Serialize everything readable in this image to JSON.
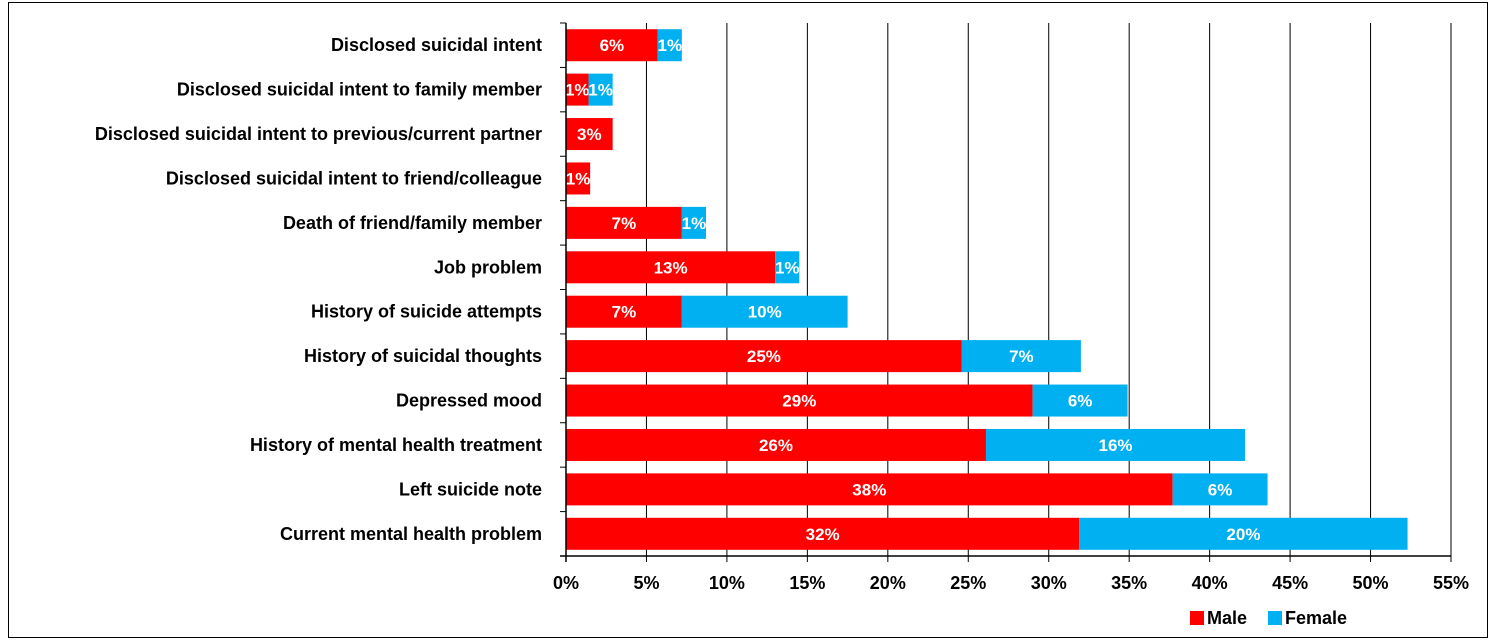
{
  "chart_data": {
    "type": "bar",
    "orientation": "horizontal",
    "stacked": true,
    "categories": [
      "Disclosed suicidal intent",
      "Disclosed suicidal intent to family member",
      "Disclosed suicidal intent to previous/current partner",
      "Disclosed suicidal intent to friend/colleague",
      "Death of friend/family member",
      "Job problem",
      "History of suicide attempts",
      "History of suicidal thoughts",
      "Depressed mood",
      "History of mental health treatment",
      "Left suicide note",
      "Current mental health problem"
    ],
    "series": [
      {
        "name": "Male",
        "color": "#ff0000",
        "values": [
          5.7,
          1.4,
          2.9,
          1.5,
          7.2,
          13.0,
          7.2,
          24.6,
          29.0,
          26.1,
          37.7,
          31.9
        ],
        "labels": [
          "6%",
          "1%",
          "3%",
          "1%",
          "7%",
          "13%",
          "7%",
          "25%",
          "29%",
          "26%",
          "38%",
          "32%"
        ]
      },
      {
        "name": "Female",
        "color": "#00b0f0",
        "values": [
          1.5,
          1.5,
          0,
          0,
          1.5,
          1.5,
          10.3,
          7.4,
          5.9,
          16.1,
          5.9,
          20.4
        ],
        "labels": [
          "1%",
          "1%",
          "",
          "",
          "1%",
          "1%",
          "10%",
          "7%",
          "6%",
          "16%",
          "6%",
          "20%"
        ]
      }
    ],
    "xlim": [
      0,
      55
    ],
    "xticks": [
      "0%",
      "5%",
      "10%",
      "15%",
      "20%",
      "25%",
      "30%",
      "35%",
      "40%",
      "45%",
      "50%",
      "55%"
    ],
    "grid": true,
    "legend": "bottom-right"
  }
}
